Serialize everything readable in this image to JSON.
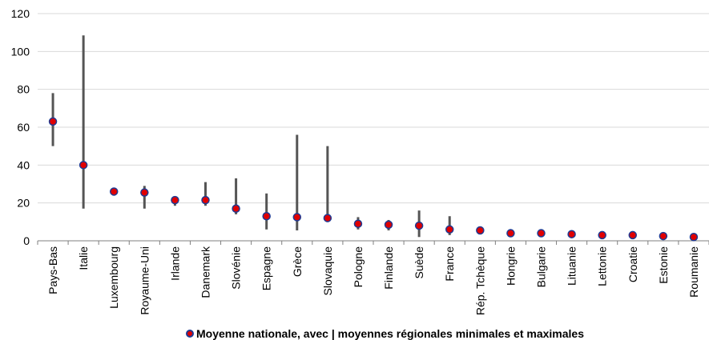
{
  "chart_data": {
    "type": "scatter",
    "title": "",
    "xlabel": "",
    "ylabel": "",
    "ylim": [
      0,
      120
    ],
    "yticks": [
      "0",
      "20",
      "40",
      "60",
      "80",
      "100",
      "120"
    ],
    "grid": "horizontal",
    "legend_position": "bottom",
    "categories": [
      "Pays-Bas",
      "Italie",
      "Luxembourg",
      "Royaume-Uni",
      "Irlande",
      "Danemark",
      "Slovénie",
      "Espagne",
      "Grèce",
      "Slovaquie",
      "Pologne",
      "Finlande",
      "Suède",
      "France",
      "Rép. Tchèque",
      "Hongrie",
      "Bulgarie",
      "Lituanie",
      "Lettonie",
      "Croatie",
      "Estonie",
      "Roumanie"
    ],
    "series": [
      {
        "name": "Moyenne nationale, avec | moyennes régionales minimales et maximales",
        "mean": [
          63,
          40,
          26,
          25.5,
          21.5,
          21.5,
          17,
          13,
          12.5,
          12,
          9,
          8.5,
          8,
          6,
          5.5,
          4,
          4,
          3.5,
          3,
          3,
          2.5,
          2
        ],
        "min": [
          50,
          17,
          null,
          17,
          18.5,
          18.5,
          14,
          6,
          5.5,
          10,
          6,
          5.5,
          2,
          3,
          null,
          null,
          2,
          null,
          null,
          null,
          null,
          null
        ],
        "max": [
          78,
          108.5,
          null,
          29,
          23,
          31,
          33,
          25,
          56,
          50,
          12.5,
          11,
          16,
          13,
          null,
          null,
          5.5,
          null,
          null,
          null,
          null,
          null
        ]
      }
    ],
    "colors": {
      "marker_fill": "#e00000",
      "marker_stroke": "#1f3a93",
      "range_bar": "#555555",
      "grid": "#d9d9d9",
      "axis": "#7f7f7f"
    }
  }
}
